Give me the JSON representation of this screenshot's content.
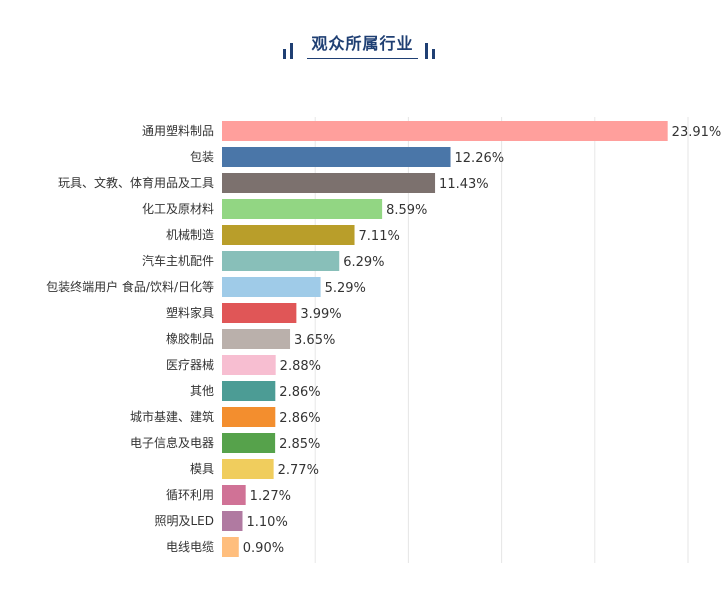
{
  "header": {
    "title": "观众所属行业"
  },
  "colors": {
    "title": "#1f3f73",
    "grid": "#e6e6e6"
  },
  "chart_data": {
    "type": "bar",
    "orientation": "horizontal",
    "title": "观众所属行业",
    "xlim": [
      0,
      25
    ],
    "grid": "vertical",
    "categories": [
      "通用塑料制品",
      "包装",
      "玩具、文教、体育用品及工具",
      "化工及原材料",
      "机械制造",
      "汽车主机配件",
      "包装终端用户 食品/饮料/日化等",
      "塑料家具",
      "橡胶制品",
      "医疗器械",
      "其他",
      "城市基建、建筑",
      "电子信息及电器",
      "模具",
      "循环利用",
      "照明及LED",
      "电线电缆"
    ],
    "values": [
      23.91,
      12.26,
      11.43,
      8.59,
      7.11,
      6.29,
      5.29,
      3.99,
      3.65,
      2.88,
      2.86,
      2.86,
      2.85,
      2.77,
      1.27,
      1.1,
      0.9
    ],
    "data_labels": [
      "23.91%",
      "12.26%",
      "11.43%",
      "8.59%",
      "7.11%",
      "6.29%",
      "5.29%",
      "3.99%",
      "3.65%",
      "2.88%",
      "2.86%",
      "2.86%",
      "2.85%",
      "2.77%",
      "1.27%",
      "1.10%",
      "0.90%"
    ],
    "bar_colors": [
      "#ff9f9c",
      "#4a76a8",
      "#7c716e",
      "#92d683",
      "#b99e2a",
      "#88bfb9",
      "#9fcbe8",
      "#e05657",
      "#bab0ab",
      "#f7bed1",
      "#4c9c95",
      "#f38e2e",
      "#56a24b",
      "#f0cd5d",
      "#d07296",
      "#b07aa1",
      "#ffbe7d"
    ]
  }
}
